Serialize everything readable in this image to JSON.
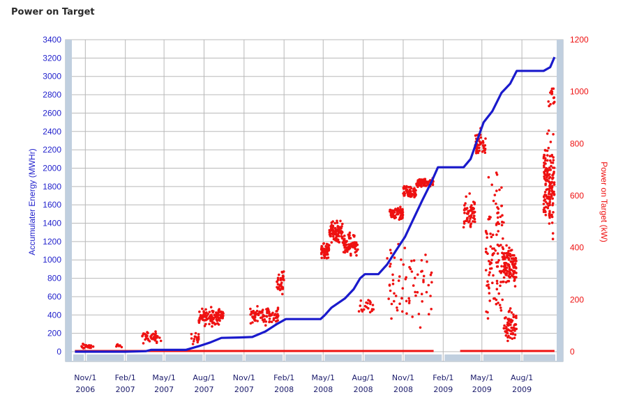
{
  "page": {
    "title": "Power on Target"
  },
  "colors": {
    "energy": "#1a1acc",
    "power": "#ee1111",
    "left_axis": "#2222cc",
    "right_axis": "#ee1111",
    "band": "#c0cfdf",
    "grid": "#b8b8b8"
  },
  "chart_data": {
    "type": "line",
    "title": "Power on Target",
    "grid": true,
    "x_axis": {
      "ticks": [
        {
          "date": "2006-11-01",
          "line1": "Nov/1",
          "line2": "2006"
        },
        {
          "date": "2007-02-01",
          "line1": "Feb/1",
          "line2": "2007"
        },
        {
          "date": "2007-05-01",
          "line1": "May/1",
          "line2": "2007"
        },
        {
          "date": "2007-08-01",
          "line1": "Aug/1",
          "line2": "2007"
        },
        {
          "date": "2007-11-01",
          "line1": "Nov/1",
          "line2": "2007"
        },
        {
          "date": "2008-02-01",
          "line1": "Feb/1",
          "line2": "2008"
        },
        {
          "date": "2008-05-01",
          "line1": "May/1",
          "line2": "2008"
        },
        {
          "date": "2008-08-01",
          "line1": "Aug/1",
          "line2": "2008"
        },
        {
          "date": "2008-11-01",
          "line1": "Nov/1",
          "line2": "2008"
        },
        {
          "date": "2009-02-01",
          "line1": "Feb/1",
          "line2": "2009"
        },
        {
          "date": "2009-05-01",
          "line1": "May/1",
          "line2": "2009"
        },
        {
          "date": "2009-08-01",
          "line1": "Aug/1",
          "line2": "2009"
        }
      ],
      "range": [
        "2006-10-01",
        "2009-10-20"
      ]
    },
    "y_left": {
      "label": "Accumulater Energy (MWHr)",
      "min": 0,
      "max": 3400,
      "ticks": [
        0,
        200,
        400,
        600,
        800,
        1000,
        1200,
        1400,
        1600,
        1800,
        2000,
        2200,
        2400,
        2600,
        2800,
        3000,
        3200,
        3400
      ]
    },
    "y_right": {
      "label": "Power on Target (kW)",
      "min": 0,
      "max": 1200,
      "ticks": [
        0,
        200,
        400,
        600,
        800,
        1000,
        1200
      ]
    },
    "series": [
      {
        "axis": "left",
        "kind": "line",
        "points": [
          [
            "2006-10-08",
            0
          ],
          [
            "2006-11-10",
            0
          ],
          [
            "2007-02-01",
            0
          ],
          [
            "2007-03-20",
            5
          ],
          [
            "2007-04-01",
            20
          ],
          [
            "2007-06-20",
            20
          ],
          [
            "2007-07-20",
            60
          ],
          [
            "2007-08-15",
            100
          ],
          [
            "2007-09-10",
            150
          ],
          [
            "2007-10-20",
            155
          ],
          [
            "2007-11-20",
            160
          ],
          [
            "2007-12-20",
            220
          ],
          [
            "2008-01-15",
            300
          ],
          [
            "2008-02-05",
            355
          ],
          [
            "2008-04-25",
            355
          ],
          [
            "2008-05-05",
            400
          ],
          [
            "2008-05-20",
            480
          ],
          [
            "2008-06-20",
            580
          ],
          [
            "2008-07-10",
            680
          ],
          [
            "2008-07-25",
            800
          ],
          [
            "2008-08-05",
            845
          ],
          [
            "2008-09-05",
            845
          ],
          [
            "2008-09-25",
            950
          ],
          [
            "2008-10-15",
            1100
          ],
          [
            "2008-11-05",
            1250
          ],
          [
            "2008-11-25",
            1450
          ],
          [
            "2008-12-15",
            1650
          ],
          [
            "2009-01-05",
            1850
          ],
          [
            "2009-01-20",
            2010
          ],
          [
            "2009-03-20",
            2010
          ],
          [
            "2009-04-05",
            2100
          ],
          [
            "2009-04-20",
            2300
          ],
          [
            "2009-05-05",
            2500
          ],
          [
            "2009-05-25",
            2620
          ],
          [
            "2009-06-15",
            2820
          ],
          [
            "2009-07-05",
            2920
          ],
          [
            "2009-07-20",
            3060
          ],
          [
            "2009-09-20",
            3060
          ],
          [
            "2009-10-05",
            3100
          ],
          [
            "2009-10-15",
            3210
          ]
        ]
      },
      {
        "axis": "right",
        "kind": "scatter",
        "baseline_segments": [
          [
            "2006-10-08",
            "2009-01-10"
          ],
          [
            "2009-03-12",
            "2009-10-15"
          ]
        ],
        "clusters": [
          {
            "start": "2006-10-20",
            "end": "2006-11-20",
            "center": 20,
            "spread": 15,
            "n": 20
          },
          {
            "start": "2007-01-10",
            "end": "2007-01-25",
            "center": 20,
            "spread": 15,
            "n": 8
          },
          {
            "start": "2007-03-10",
            "end": "2007-04-25",
            "center": 55,
            "spread": 30,
            "n": 45
          },
          {
            "start": "2007-07-01",
            "end": "2007-07-20",
            "center": 50,
            "spread": 30,
            "n": 15
          },
          {
            "start": "2007-07-20",
            "end": "2007-09-15",
            "center": 135,
            "spread": 45,
            "n": 110
          },
          {
            "start": "2007-11-15",
            "end": "2008-01-20",
            "center": 140,
            "spread": 45,
            "n": 95
          },
          {
            "start": "2008-01-15",
            "end": "2008-02-01",
            "center": 270,
            "spread": 60,
            "n": 35
          },
          {
            "start": "2008-04-25",
            "end": "2008-05-15",
            "center": 390,
            "spread": 40,
            "n": 60
          },
          {
            "start": "2008-05-15",
            "end": "2008-06-15",
            "center": 460,
            "spread": 55,
            "n": 90
          },
          {
            "start": "2008-06-15",
            "end": "2008-07-20",
            "center": 410,
            "spread": 55,
            "n": 70
          },
          {
            "start": "2008-07-20",
            "end": "2008-08-25",
            "center": 180,
            "spread": 60,
            "n": 20
          },
          {
            "start": "2008-10-01",
            "end": "2008-11-01",
            "center": 530,
            "spread": 35,
            "n": 60
          },
          {
            "start": "2008-11-01",
            "end": "2008-12-01",
            "center": 610,
            "spread": 35,
            "n": 75
          },
          {
            "start": "2008-12-01",
            "end": "2009-01-10",
            "center": 650,
            "spread": 25,
            "n": 75
          },
          {
            "start": "2008-09-25",
            "end": "2009-01-10",
            "center": 250,
            "spread": 230,
            "n": 70
          },
          {
            "start": "2009-03-20",
            "end": "2009-04-15",
            "center": 530,
            "spread": 90,
            "n": 60
          },
          {
            "start": "2009-04-15",
            "end": "2009-05-10",
            "center": 800,
            "spread": 70,
            "n": 50
          },
          {
            "start": "2009-05-10",
            "end": "2009-06-20",
            "center": 400,
            "spread": 380,
            "n": 110
          },
          {
            "start": "2009-06-20",
            "end": "2009-07-20",
            "center": 330,
            "spread": 110,
            "n": 120
          },
          {
            "start": "2009-06-20",
            "end": "2009-07-20",
            "center": 100,
            "spread": 90,
            "n": 60
          },
          {
            "start": "2009-09-20",
            "end": "2009-10-15",
            "center": 650,
            "spread": 250,
            "n": 150
          },
          {
            "start": "2009-10-01",
            "end": "2009-10-15",
            "center": 980,
            "spread": 60,
            "n": 15
          }
        ]
      }
    ]
  }
}
